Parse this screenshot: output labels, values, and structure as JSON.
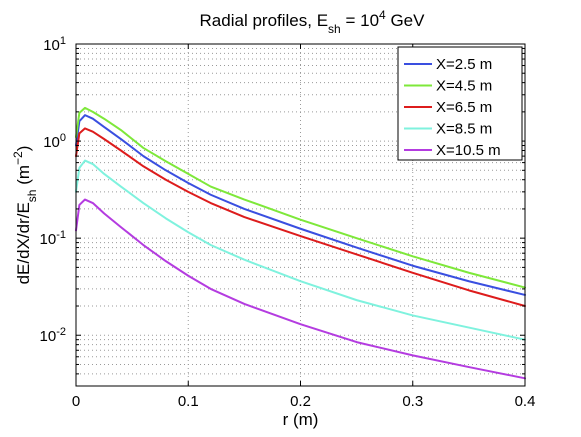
{
  "chart_data": {
    "type": "line",
    "title": {
      "prefix": "Radial profiles, E",
      "sub": "sh",
      "mid": " = 10",
      "sup": "4",
      "suffix": " GeV"
    },
    "xlabel": "r (m)",
    "ylabel": {
      "prefix": "dE/dX/dr/E",
      "sub": "sh",
      "mid": " (m",
      "sup": "−2",
      "suffix": ")"
    },
    "xlim": [
      0,
      0.4
    ],
    "ylim": [
      0.003,
      10
    ],
    "yscale": "log",
    "grid": true,
    "legend_position": "top-right",
    "x_ticks": [
      {
        "value": 0,
        "label": "0"
      },
      {
        "value": 0.1,
        "label": "0.1"
      },
      {
        "value": 0.2,
        "label": "0.2"
      },
      {
        "value": 0.3,
        "label": "0.3"
      },
      {
        "value": 0.4,
        "label": "0.4"
      }
    ],
    "y_ticks": [
      {
        "value": 0.01,
        "base": "10",
        "exp": "-2"
      },
      {
        "value": 0.1,
        "base": "10",
        "exp": "-1"
      },
      {
        "value": 1,
        "base": "10",
        "exp": "0"
      },
      {
        "value": 10,
        "base": "10",
        "exp": "1"
      }
    ],
    "x": [
      0,
      0.003,
      0.008,
      0.015,
      0.025,
      0.04,
      0.06,
      0.08,
      0.1,
      0.12,
      0.15,
      0.2,
      0.25,
      0.3,
      0.35,
      0.4
    ],
    "series": [
      {
        "name": "X=2.5 m",
        "color": "#3a4fe0",
        "values": [
          0.9,
          1.6,
          1.85,
          1.7,
          1.4,
          1.05,
          0.7,
          0.5,
          0.37,
          0.28,
          0.2,
          0.125,
          0.08,
          0.052,
          0.036,
          0.026
        ]
      },
      {
        "name": "X=4.5 m",
        "color": "#7ee83a",
        "values": [
          1.1,
          1.95,
          2.2,
          2.0,
          1.7,
          1.3,
          0.85,
          0.62,
          0.46,
          0.34,
          0.25,
          0.155,
          0.1,
          0.065,
          0.044,
          0.031
        ]
      },
      {
        "name": "X=6.5 m",
        "color": "#dd1c1c",
        "values": [
          0.7,
          1.2,
          1.35,
          1.25,
          1.05,
          0.8,
          0.55,
          0.4,
          0.3,
          0.23,
          0.165,
          0.105,
          0.068,
          0.044,
          0.029,
          0.02
        ]
      },
      {
        "name": "X=8.5 m",
        "color": "#7ff2de",
        "values": [
          0.3,
          0.53,
          0.63,
          0.58,
          0.46,
          0.34,
          0.23,
          0.16,
          0.115,
          0.085,
          0.06,
          0.036,
          0.023,
          0.016,
          0.012,
          0.009
        ]
      },
      {
        "name": "X=10.5 m",
        "color": "#b43ce0",
        "values": [
          0.12,
          0.22,
          0.25,
          0.23,
          0.18,
          0.13,
          0.085,
          0.058,
          0.041,
          0.03,
          0.021,
          0.013,
          0.0085,
          0.0062,
          0.0047,
          0.0036
        ]
      }
    ]
  }
}
